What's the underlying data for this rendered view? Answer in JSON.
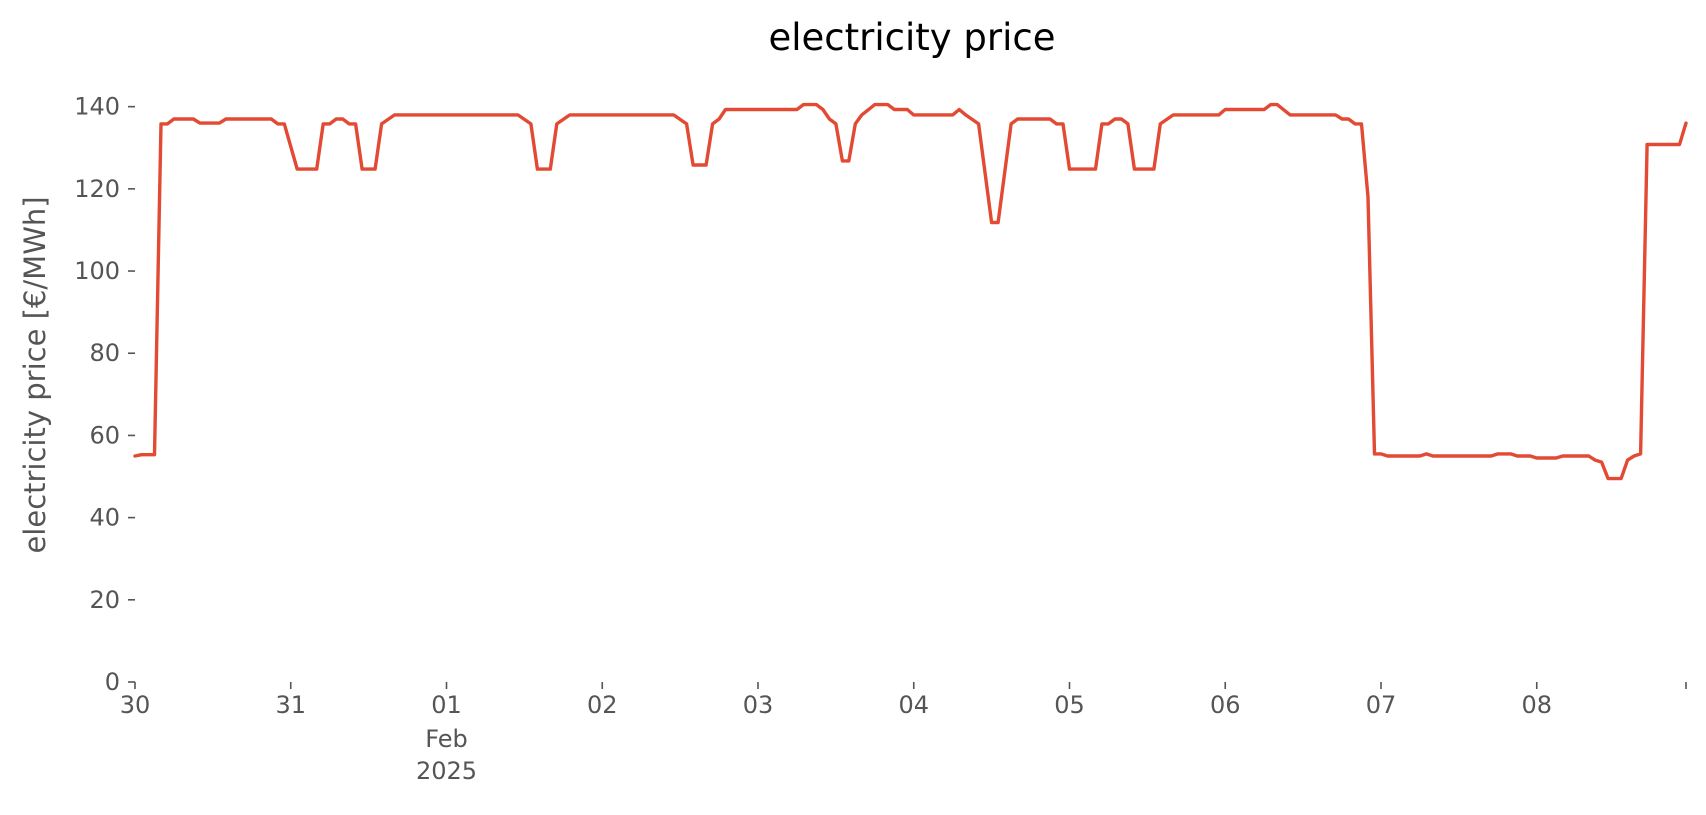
{
  "chart_data": {
    "type": "line",
    "title": "electricity price",
    "xlabel": "",
    "ylabel": "electricity price [€/MWh]",
    "ylim": [
      0,
      140
    ],
    "yticks": [
      0,
      20,
      40,
      60,
      80,
      100,
      120,
      140
    ],
    "xlim": [
      "2025-01-30T00:00",
      "2025-02-08T23:00"
    ],
    "xticks": [
      {
        "x": "2025-01-30T00:00",
        "label": "30"
      },
      {
        "x": "2025-01-31T00:00",
        "label": "31"
      },
      {
        "x": "2025-02-01T00:00",
        "label": "01",
        "sub": [
          "Feb",
          "2025"
        ]
      },
      {
        "x": "2025-02-02T00:00",
        "label": "02"
      },
      {
        "x": "2025-02-03T00:00",
        "label": "03"
      },
      {
        "x": "2025-02-04T00:00",
        "label": "04"
      },
      {
        "x": "2025-02-05T00:00",
        "label": "05"
      },
      {
        "x": "2025-02-06T00:00",
        "label": "06"
      },
      {
        "x": "2025-02-07T00:00",
        "label": "07"
      },
      {
        "x": "2025-02-08T00:00",
        "label": "08"
      },
      {
        "x": "2025-02-08T23:00",
        "label": ""
      }
    ],
    "grid": false,
    "colors": {
      "line": "#e24a33",
      "text": "#555555",
      "title": "#000000"
    },
    "series": [
      {
        "points": [
          [
            "2025-01-30T00:00",
            55
          ],
          [
            "2025-01-30T01:00",
            55.3
          ],
          [
            "2025-01-30T03:00",
            55.3
          ],
          [
            "2025-01-30T04:00",
            135.8
          ],
          [
            "2025-01-30T05:00",
            135.8
          ],
          [
            "2025-01-30T06:00",
            137
          ],
          [
            "2025-01-30T09:00",
            137
          ],
          [
            "2025-01-30T10:00",
            136
          ],
          [
            "2025-01-30T13:00",
            136
          ],
          [
            "2025-01-30T14:00",
            137
          ],
          [
            "2025-01-30T21:00",
            137
          ],
          [
            "2025-01-30T22:00",
            135.8
          ],
          [
            "2025-01-30T23:00",
            135.8
          ],
          [
            "2025-01-31T01:00",
            124.8
          ],
          [
            "2025-01-31T04:00",
            124.8
          ],
          [
            "2025-01-31T05:00",
            135.8
          ],
          [
            "2025-01-31T06:00",
            135.8
          ],
          [
            "2025-01-31T07:00",
            137
          ],
          [
            "2025-01-31T08:00",
            137
          ],
          [
            "2025-01-31T09:00",
            135.8
          ],
          [
            "2025-01-31T10:00",
            135.8
          ],
          [
            "2025-01-31T11:00",
            124.8
          ],
          [
            "2025-01-31T13:00",
            124.8
          ],
          [
            "2025-01-31T14:00",
            135.8
          ],
          [
            "2025-01-31T16:00",
            138
          ],
          [
            "2025-02-01T11:00",
            138
          ],
          [
            "2025-02-01T13:00",
            135.8
          ],
          [
            "2025-02-01T14:00",
            124.8
          ],
          [
            "2025-02-01T16:00",
            124.8
          ],
          [
            "2025-02-01T17:00",
            135.8
          ],
          [
            "2025-02-01T19:00",
            138
          ],
          [
            "2025-02-02T11:00",
            138
          ],
          [
            "2025-02-02T13:00",
            135.8
          ],
          [
            "2025-02-02T14:00",
            125.8
          ],
          [
            "2025-02-02T16:00",
            125.8
          ],
          [
            "2025-02-02T17:00",
            135.8
          ],
          [
            "2025-02-02T18:00",
            137
          ],
          [
            "2025-02-02T19:00",
            139.3
          ],
          [
            "2025-02-03T06:00",
            139.3
          ],
          [
            "2025-02-03T07:00",
            140.5
          ],
          [
            "2025-02-03T09:00",
            140.5
          ],
          [
            "2025-02-03T10:00",
            139.3
          ],
          [
            "2025-02-03T11:00",
            137
          ],
          [
            "2025-02-03T12:00",
            135.8
          ],
          [
            "2025-02-03T13:00",
            126.8
          ],
          [
            "2025-02-03T14:00",
            126.8
          ],
          [
            "2025-02-03T15:00",
            135.8
          ],
          [
            "2025-02-03T16:00",
            138
          ],
          [
            "2025-02-03T18:00",
            140.5
          ],
          [
            "2025-02-03T20:00",
            140.5
          ],
          [
            "2025-02-03T21:00",
            139.3
          ],
          [
            "2025-02-03T23:00",
            139.3
          ],
          [
            "2025-02-04T00:00",
            138
          ],
          [
            "2025-02-04T06:00",
            138
          ],
          [
            "2025-02-04T07:00",
            139.3
          ],
          [
            "2025-02-04T08:00",
            138
          ],
          [
            "2025-02-04T10:00",
            135.8
          ],
          [
            "2025-02-04T12:00",
            111.8
          ],
          [
            "2025-02-04T13:00",
            111.8
          ],
          [
            "2025-02-04T15:00",
            135.8
          ],
          [
            "2025-02-04T16:00",
            137
          ],
          [
            "2025-02-04T21:00",
            137
          ],
          [
            "2025-02-04T22:00",
            135.8
          ],
          [
            "2025-02-04T23:00",
            135.8
          ],
          [
            "2025-02-05T00:00",
            124.8
          ],
          [
            "2025-02-05T04:00",
            124.8
          ],
          [
            "2025-02-05T05:00",
            135.8
          ],
          [
            "2025-02-05T06:00",
            135.8
          ],
          [
            "2025-02-05T07:00",
            137
          ],
          [
            "2025-02-05T08:00",
            137
          ],
          [
            "2025-02-05T09:00",
            135.8
          ],
          [
            "2025-02-05T10:00",
            124.8
          ],
          [
            "2025-02-05T13:00",
            124.8
          ],
          [
            "2025-02-05T14:00",
            135.8
          ],
          [
            "2025-02-05T16:00",
            138
          ],
          [
            "2025-02-05T23:00",
            138
          ],
          [
            "2025-02-06T00:00",
            139.3
          ],
          [
            "2025-02-06T06:00",
            139.3
          ],
          [
            "2025-02-06T07:00",
            140.5
          ],
          [
            "2025-02-06T08:00",
            140.5
          ],
          [
            "2025-02-06T10:00",
            138
          ],
          [
            "2025-02-06T17:00",
            138
          ],
          [
            "2025-02-06T18:00",
            137
          ],
          [
            "2025-02-06T19:00",
            137
          ],
          [
            "2025-02-06T20:00",
            135.8
          ],
          [
            "2025-02-06T21:00",
            135.8
          ],
          [
            "2025-02-06T22:00",
            118
          ],
          [
            "2025-02-06T23:00",
            55.5
          ],
          [
            "2025-02-07T00:00",
            55.5
          ],
          [
            "2025-02-07T01:00",
            55
          ],
          [
            "2025-02-07T06:00",
            55
          ],
          [
            "2025-02-07T07:00",
            55.5
          ],
          [
            "2025-02-07T08:00",
            55
          ],
          [
            "2025-02-07T17:00",
            55
          ],
          [
            "2025-02-07T18:00",
            55.5
          ],
          [
            "2025-02-07T20:00",
            55.5
          ],
          [
            "2025-02-07T21:00",
            55
          ],
          [
            "2025-02-07T23:00",
            55
          ],
          [
            "2025-02-08T00:00",
            54.5
          ],
          [
            "2025-02-08T03:00",
            54.5
          ],
          [
            "2025-02-08T04:00",
            55
          ],
          [
            "2025-02-08T08:00",
            55
          ],
          [
            "2025-02-08T09:00",
            54
          ],
          [
            "2025-02-08T10:00",
            53.5
          ],
          [
            "2025-02-08T11:00",
            49.5
          ],
          [
            "2025-02-08T13:00",
            49.5
          ],
          [
            "2025-02-08T14:00",
            54
          ],
          [
            "2025-02-08T15:00",
            55
          ],
          [
            "2025-02-08T16:00",
            55.5
          ],
          [
            "2025-02-08T17:00",
            130.8
          ],
          [
            "2025-02-08T22:00",
            130.8
          ],
          [
            "2025-02-08T23:00",
            136
          ]
        ]
      }
    ]
  }
}
